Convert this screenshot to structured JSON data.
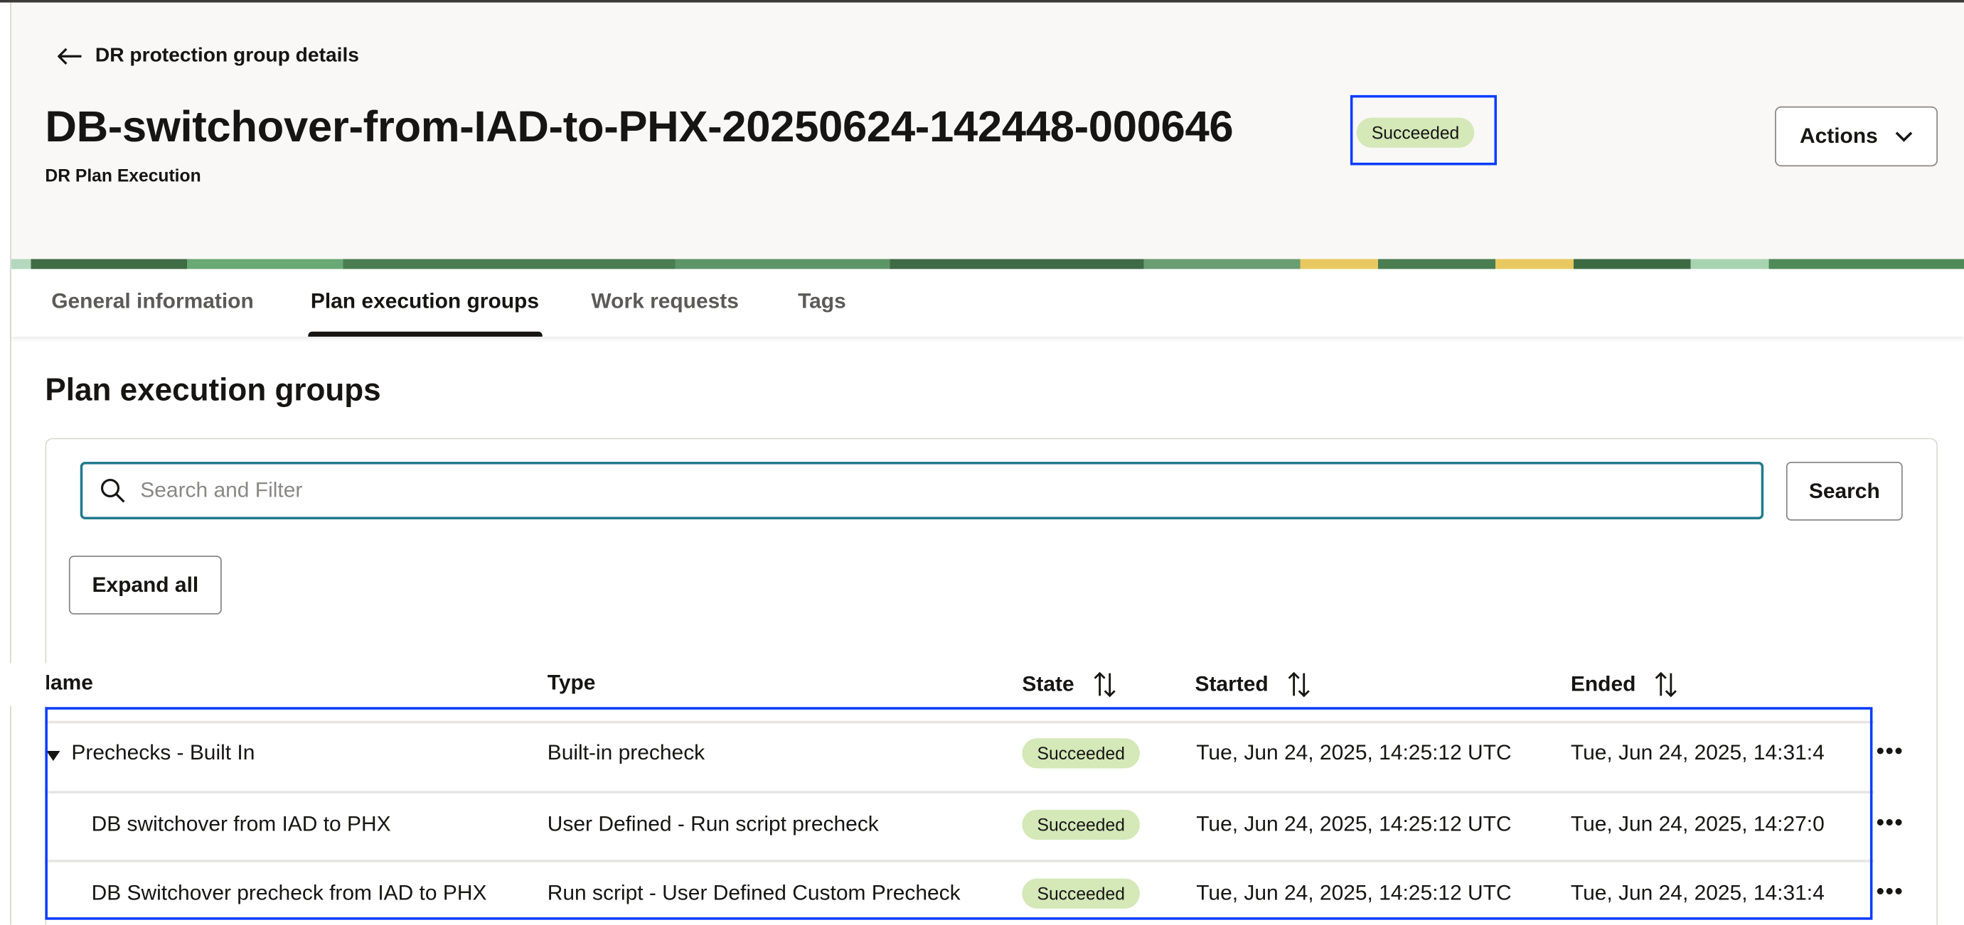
{
  "header": {
    "back_label": "DR protection group details",
    "title": "DB-switchover-from-IAD-to-PHX-20250624-142448-000646",
    "status": "Succeeded",
    "subtitle": "DR Plan Execution",
    "actions_label": "Actions"
  },
  "tabs": [
    {
      "label": "General information",
      "active": false
    },
    {
      "label": "Plan execution groups",
      "active": true
    },
    {
      "label": "Work requests",
      "active": false
    },
    {
      "label": "Tags",
      "active": false
    }
  ],
  "section": {
    "title": "Plan execution groups",
    "search_placeholder": "Search and Filter",
    "search_button": "Search",
    "expand_all": "Expand all"
  },
  "table": {
    "columns": [
      "Name",
      "Type",
      "State",
      "Started",
      "Ended"
    ],
    "rows": [
      {
        "name": "Prechecks - Built In",
        "type": "Built-in precheck",
        "state": "Succeeded",
        "started": "Tue, Jun 24, 2025, 14:25:12 UTC",
        "ended": "Tue, Jun 24, 2025, 14:31:4",
        "expandable": true
      },
      {
        "name": "DB switchover from IAD to PHX",
        "type": "User Defined - Run script precheck",
        "state": "Succeeded",
        "started": "Tue, Jun 24, 2025, 14:25:12 UTC",
        "ended": "Tue, Jun 24, 2025, 14:27:0"
      },
      {
        "name": "DB Switchover precheck from IAD to PHX",
        "type": "Run script - User Defined Custom Precheck",
        "state": "Succeeded",
        "started": "Tue, Jun 24, 2025, 14:25:12 UTC",
        "ended": "Tue, Jun 24, 2025, 14:31:4"
      }
    ]
  },
  "colors": {
    "success_badge": "#d4e8b8",
    "highlight": "#0a3cff",
    "search_border": "#227a8c"
  }
}
